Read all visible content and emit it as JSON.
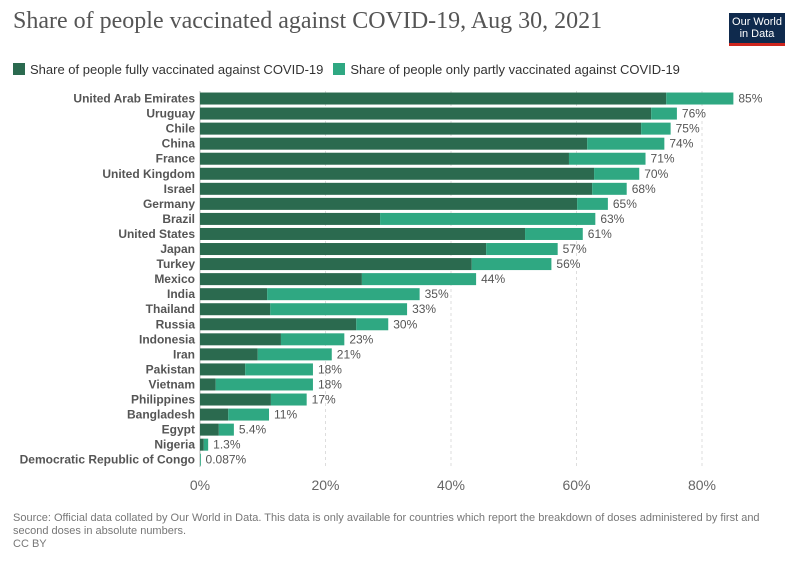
{
  "title": "Share of people vaccinated against COVID-19, Aug 30, 2021",
  "logo": [
    "Our World",
    "in Data"
  ],
  "source": "Source: Official data collated by Our World in Data. This data is only available for countries which report the breakdown of doses administered by first and second doses in absolute numbers.",
  "license": "CC BY",
  "colors": {
    "full": "#2b6a4f",
    "partial": "#2fa882"
  },
  "chart_data": {
    "type": "bar",
    "orientation": "horizontal",
    "stacked": true,
    "title": "Share of people vaccinated against COVID-19, Aug 30, 2021",
    "categories": [
      "United Arab Emirates",
      "Uruguay",
      "Chile",
      "China",
      "France",
      "United Kingdom",
      "Israel",
      "Germany",
      "Brazil",
      "United States",
      "Japan",
      "Turkey",
      "Mexico",
      "India",
      "Thailand",
      "Russia",
      "Indonesia",
      "Iran",
      "Pakistan",
      "Vietnam",
      "Philippines",
      "Bangladesh",
      "Egypt",
      "Nigeria",
      "Democratic Republic of Congo"
    ],
    "series": [
      {
        "name": "Share of people fully vaccinated against COVID-19",
        "values": [
          74.3,
          71.9,
          70.3,
          61.7,
          58.8,
          62.8,
          62.5,
          60.1,
          28.7,
          51.8,
          45.6,
          43.3,
          25.8,
          10.7,
          11.2,
          24.9,
          12.9,
          9.2,
          7.2,
          2.5,
          11.3,
          4.5,
          3.0,
          0.6,
          0.01
        ]
      },
      {
        "name": "Share of people only partly vaccinated against COVID-19",
        "values": [
          10.7,
          4.1,
          4.7,
          12.3,
          12.2,
          7.2,
          5.5,
          4.9,
          34.3,
          9.2,
          11.4,
          12.7,
          18.2,
          24.3,
          21.8,
          5.1,
          10.1,
          11.8,
          10.8,
          15.5,
          5.7,
          6.5,
          2.4,
          0.7,
          0.077
        ]
      }
    ],
    "total_labels": [
      "85%",
      "76%",
      "75%",
      "74%",
      "71%",
      "70%",
      "68%",
      "65%",
      "63%",
      "61%",
      "57%",
      "56%",
      "44%",
      "35%",
      "33%",
      "30%",
      "23%",
      "21%",
      "18%",
      "18%",
      "17%",
      "11%",
      "5.4%",
      "1.3%",
      "0.087%"
    ],
    "xticks": [
      "0%",
      "20%",
      "40%",
      "60%",
      "80%"
    ],
    "xtick_values": [
      0,
      20,
      40,
      60,
      80
    ],
    "xlim": [
      0,
      85
    ],
    "grid": true,
    "legend_position": "top-left"
  }
}
